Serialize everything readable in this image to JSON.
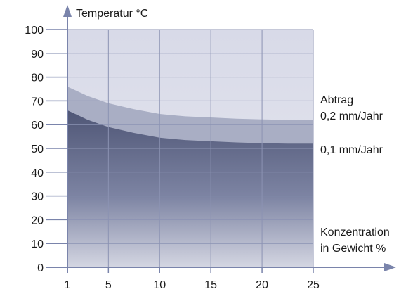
{
  "chart_data": {
    "type": "area",
    "title": "",
    "ylabel": "Temperatur °C",
    "xlabel_lines": [
      "Konzentration",
      "in Gewicht %"
    ],
    "x_ticks": [
      1,
      5,
      10,
      15,
      20,
      25
    ],
    "y_ticks": [
      0,
      10,
      20,
      30,
      40,
      50,
      60,
      70,
      80,
      90,
      100
    ],
    "xlim": [
      1,
      25
    ],
    "ylim": [
      0,
      100
    ],
    "annotation": "Abtrag",
    "series": [
      {
        "name": "0,2 mm/Jahr",
        "x": [
          1,
          2,
          3,
          5,
          7.5,
          10,
          12.5,
          15,
          17.5,
          20,
          22.5,
          25
        ],
        "y": [
          76,
          74,
          72,
          69,
          66.5,
          64.5,
          63.5,
          63,
          62.5,
          62.2,
          62,
          62
        ],
        "color": "#a9aec4"
      },
      {
        "name": "0,1 mm/Jahr",
        "x": [
          1,
          2,
          3,
          5,
          7.5,
          10,
          12.5,
          15,
          17.5,
          20,
          22.5,
          25
        ],
        "y": [
          66,
          64,
          62,
          59,
          56.5,
          54.5,
          53.5,
          53,
          52.5,
          52.2,
          52,
          52
        ],
        "color": "#5b6282"
      }
    ],
    "grid": true,
    "colors": {
      "background": "#dcdeea",
      "grid": "#8c93b3",
      "axis": "#7a84ab"
    }
  }
}
